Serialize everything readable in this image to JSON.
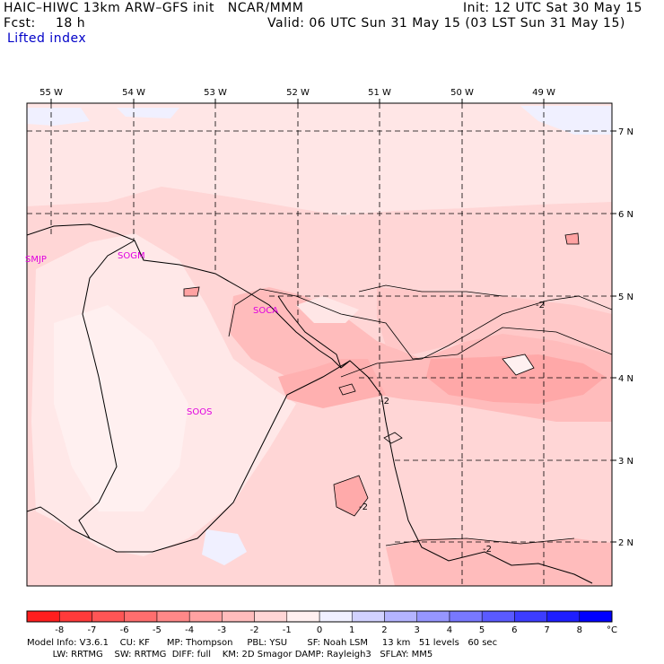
{
  "header": {
    "model_line": "HAIC–HIWC 13km ARW–GFS init   NCAR/MMM",
    "init_line": "Init: 12 UTC Sat 30 May 15",
    "fcst_label": "Fcst:",
    "fcst_value": "18 h",
    "valid_line": "Valid: 06 UTC Sun 31 May 15 (03 LST Sun 31 May 15)",
    "field_name": "Lifted index"
  },
  "map": {
    "lon_labels": [
      "55 W",
      "54 W",
      "53 W",
      "52 W",
      "51 W",
      "50 W",
      "49 W"
    ],
    "lat_labels": [
      "7 N",
      "6 N",
      "5 N",
      "4 N",
      "3 N",
      "2 N"
    ],
    "stations": [
      "SMJP",
      "SOGM",
      "SOCA",
      "SOOS"
    ],
    "contour_labels": [
      "-2",
      "-2",
      "-2",
      "-2"
    ]
  },
  "colorbar": {
    "ticks": [
      "-8",
      "-7",
      "-6",
      "-5",
      "-4",
      "-3",
      "-2",
      "-1",
      "0",
      "1",
      "2",
      "3",
      "4",
      "5",
      "6",
      "7",
      "8"
    ],
    "unit": "°C",
    "colors": [
      "#ff1e1e",
      "#ff3a3a",
      "#ff5555",
      "#ff6e6e",
      "#ff8888",
      "#ffa2a2",
      "#ffbcbc",
      "#ffd6d6",
      "#fff0f0",
      "#f0f0ff",
      "#d2d2ff",
      "#b4b4ff",
      "#9696ff",
      "#7878ff",
      "#5a5aff",
      "#3c3cff",
      "#1e1eff",
      "#0000ff"
    ]
  },
  "footer": {
    "line1": "Model Info: V3.6.1    CU: KF      MP: Thompson     PBL: YSU       SF: Noah LSM     13 km   51 levels   60 sec",
    "line2": "         LW: RRTMG    SW: RRTMG  DIFF: full    KM: 2D Smagor DAMP: Rayleigh3   SFLAY: MM5"
  }
}
